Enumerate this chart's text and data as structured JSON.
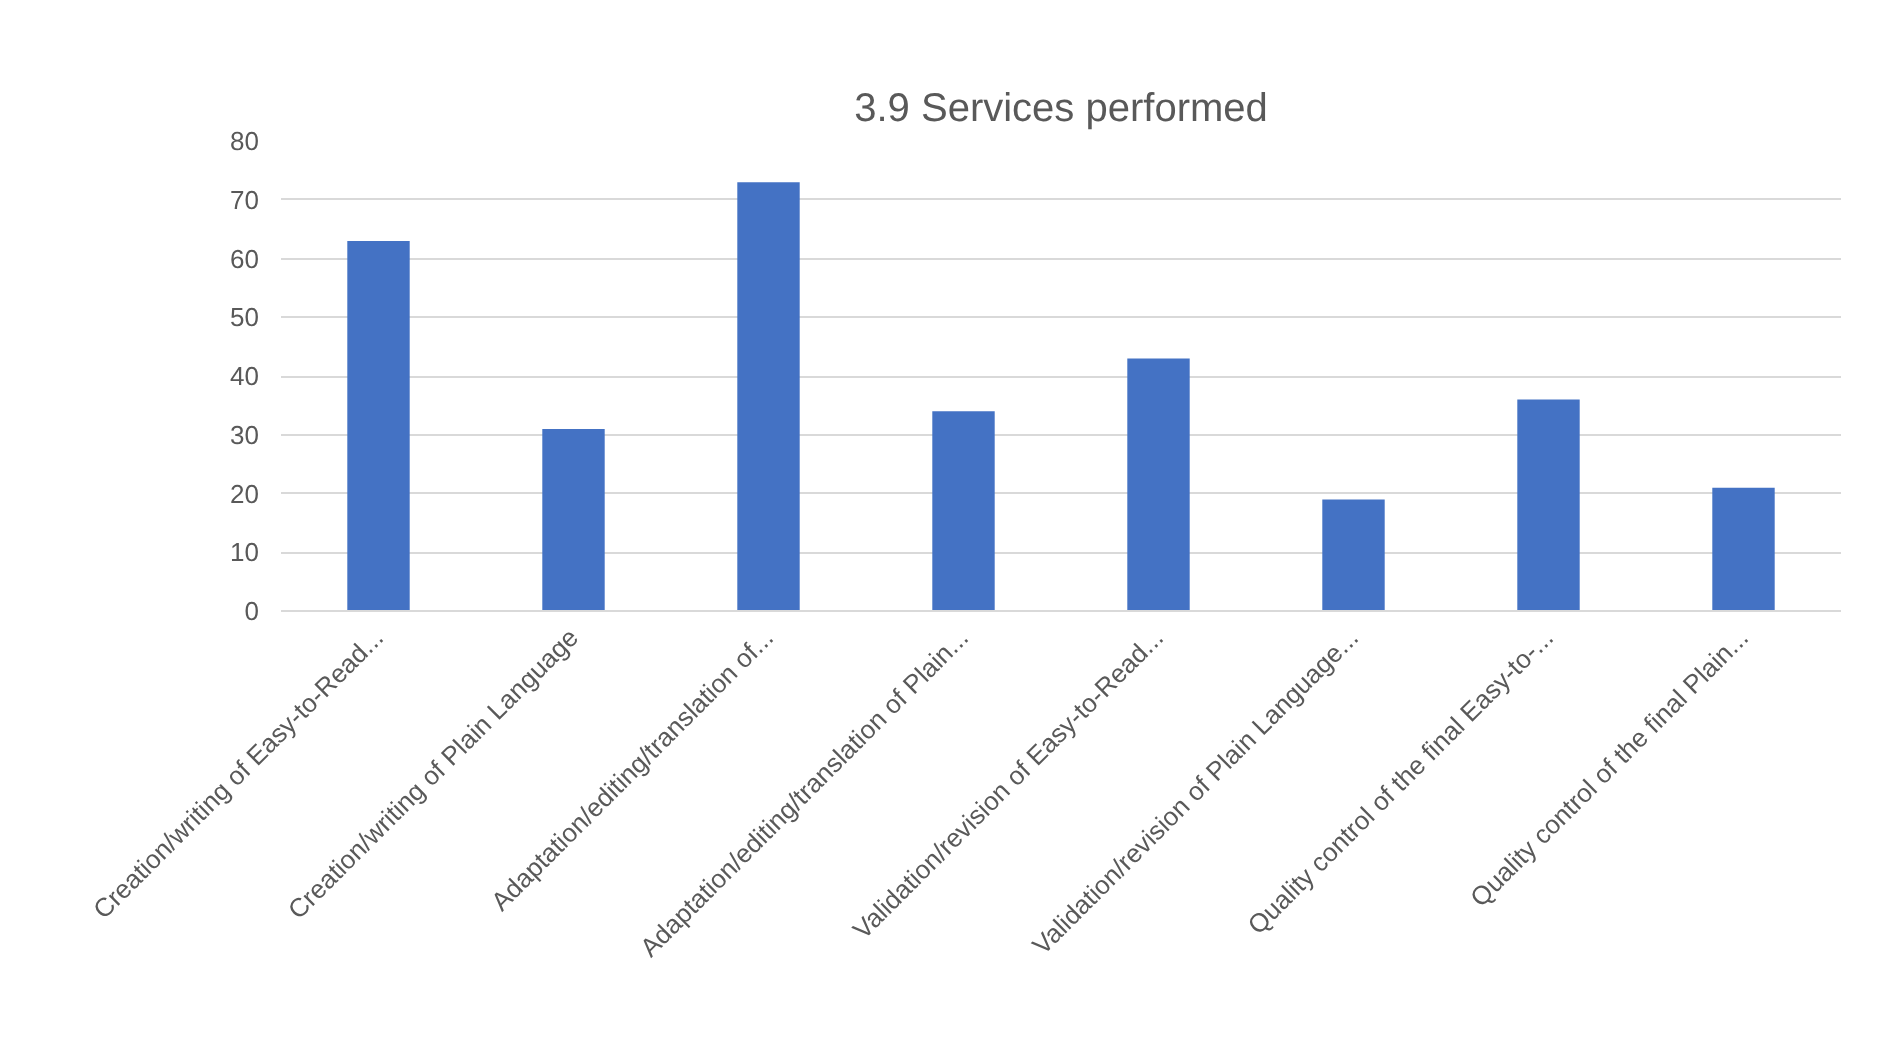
{
  "chart_data": {
    "type": "bar",
    "title": "3.9 Services performed",
    "categories": [
      "Creation/writing of Easy-to-Read...",
      "Creation/writing of Plain Language",
      "Adaptation/editing/translation of...",
      "Adaptation/editing/translation of Plain...",
      "Validation/revision of Easy-to-Read...",
      "Validation/revision of Plain Language...",
      "Quality control of the final Easy-to-...",
      "Quality control of the final Plain..."
    ],
    "values": [
      63,
      31,
      73,
      34,
      43,
      19,
      36,
      21
    ],
    "color": "#4472c4",
    "ylim": [
      0,
      80
    ],
    "yticks": [
      0,
      10,
      20,
      30,
      40,
      50,
      60,
      70,
      80
    ],
    "grid": "y"
  }
}
